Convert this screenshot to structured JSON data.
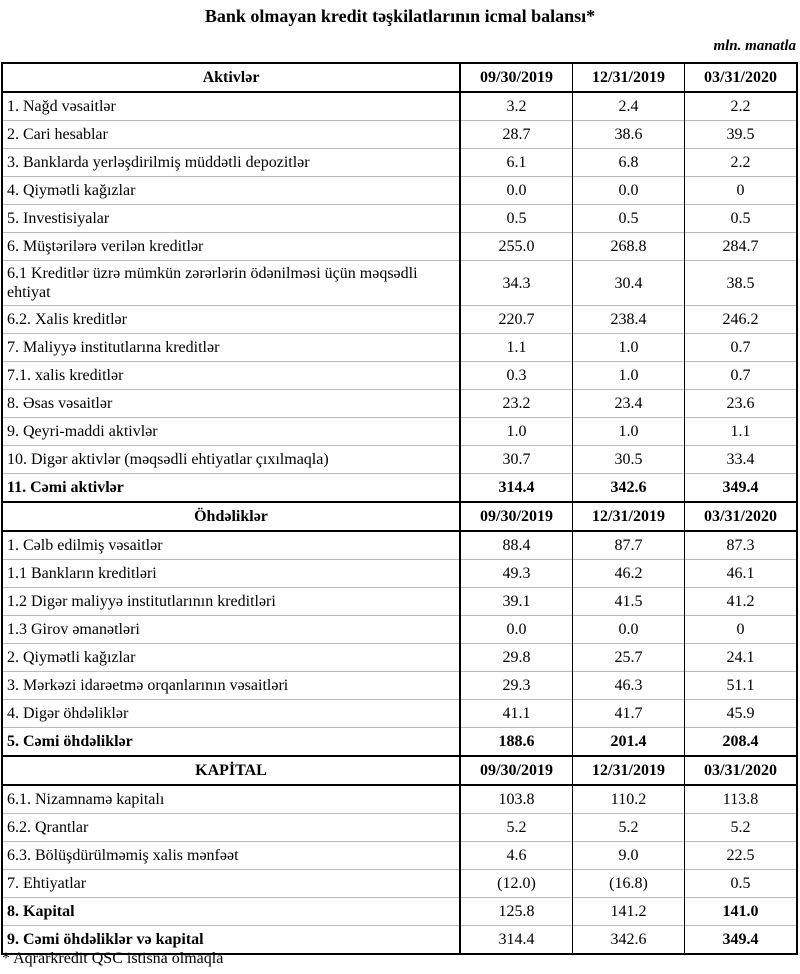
{
  "title": "Bank olmayan kredit təşkilatlarının icmal balansı*",
  "unit": "mln. manatla",
  "footnote": "* Aqrarkredit QSC istisna olmaqla",
  "rows": [
    {
      "type": "header",
      "label": "Aktivlər",
      "values": [
        "09/30/2019",
        "12/31/2019",
        "03/31/2020"
      ]
    },
    {
      "label": "1. Nağd vəsaitlər",
      "values": [
        "3.2",
        "2.4",
        "2.2"
      ]
    },
    {
      "label": "2. Cari hesablar",
      "values": [
        "28.7",
        "38.6",
        "39.5"
      ]
    },
    {
      "label": "3. Banklarda yerləşdirilmiş müddətli depozitlər",
      "values": [
        "6.1",
        "6.8",
        "2.2"
      ]
    },
    {
      "label": "4. Qiymətli kağızlar",
      "values": [
        "0.0",
        "0.0",
        "0"
      ]
    },
    {
      "label": "5. Investisiyalar",
      "values": [
        "0.5",
        "0.5",
        "0.5"
      ]
    },
    {
      "label": "6. Müştərilərə verilən kreditlər",
      "values": [
        "255.0",
        "268.8",
        "284.7"
      ]
    },
    {
      "label": "6.1 Kreditlər üzrə mümkün zərərlərin ödənilməsi üçün məqsədli ehtiyat",
      "values": [
        "34.3",
        "30.4",
        "38.5"
      ],
      "tall": true
    },
    {
      "label": "6.2. Xalis kreditlər",
      "values": [
        "220.7",
        "238.4",
        "246.2"
      ]
    },
    {
      "label": "7. Maliyyə institutlarına kreditlər",
      "values": [
        "1.1",
        "1.0",
        "0.7"
      ]
    },
    {
      "label": "7.1.  xalis kreditlər",
      "values": [
        "0.3",
        "1.0",
        "0.7"
      ]
    },
    {
      "label": "8.  Əsas vəsaitlər",
      "values": [
        "23.2",
        "23.4",
        "23.6"
      ]
    },
    {
      "label": "9. Qeyri-maddi aktivlər",
      "values": [
        "1.0",
        "1.0",
        "1.1"
      ]
    },
    {
      "label": "10. Digər aktivlər (məqsədli ehtiyatlar çıxılmaqla)",
      "values": [
        "30.7",
        "30.5",
        "33.4"
      ]
    },
    {
      "label": "11. Cəmi aktivlər",
      "values": [
        "314.4",
        "342.6",
        "349.4"
      ],
      "bold": [
        true,
        true,
        true,
        true
      ]
    },
    {
      "type": "header",
      "label": "Öhdəliklər",
      "values": [
        "09/30/2019",
        "12/31/2019",
        "03/31/2020"
      ]
    },
    {
      "label": "1. Cəlb edilmiş vəsaitlər",
      "values": [
        "88.4",
        "87.7",
        "87.3"
      ]
    },
    {
      "label": "1.1 Bankların kreditləri",
      "values": [
        "49.3",
        "46.2",
        "46.1"
      ]
    },
    {
      "label": "1.2 Digər maliyyə institutlarının kreditləri",
      "values": [
        "39.1",
        "41.5",
        "41.2"
      ]
    },
    {
      "label": "1.3 Girov əmanətləri",
      "values": [
        "0.0",
        "0.0",
        "0"
      ]
    },
    {
      "label": "2. Qiymətli kağızlar",
      "values": [
        "29.8",
        "25.7",
        "24.1"
      ]
    },
    {
      "label": "3. Mərkəzi idarəetmə orqanlarının vəsaitləri",
      "values": [
        "29.3",
        "46.3",
        "51.1"
      ]
    },
    {
      "label": "4. Digər öhdəliklər",
      "values": [
        "41.1",
        "41.7",
        "45.9"
      ]
    },
    {
      "label": "5. Cəmi öhdəliklər",
      "values": [
        "188.6",
        "201.4",
        "208.4"
      ],
      "bold": [
        true,
        true,
        true,
        true
      ]
    },
    {
      "type": "header",
      "label": "KAPİTAL",
      "values": [
        "09/30/2019",
        "12/31/2019",
        "03/31/2020"
      ]
    },
    {
      "label": "6.1. Nizamnamə kapitalı",
      "values": [
        "103.8",
        "110.2",
        "113.8"
      ]
    },
    {
      "label": "6.2. Qrantlar",
      "values": [
        "5.2",
        "5.2",
        "5.2"
      ]
    },
    {
      "label": "6.3. Bölüşdürülməmiş xalis mənfəət",
      "values": [
        "4.6",
        "9.0",
        "22.5"
      ]
    },
    {
      "label": "7. Ehtiyatlar",
      "values": [
        "(12.0)",
        "(16.8)",
        "0.5"
      ]
    },
    {
      "label": "8. Kapital",
      "values": [
        "125.8",
        "141.2",
        "141.0"
      ],
      "bold": [
        true,
        false,
        false,
        true
      ]
    },
    {
      "label": "9. Cəmi öhdəliklər və kapital",
      "values": [
        "314.4",
        "342.6",
        "349.4"
      ],
      "bold": [
        true,
        false,
        false,
        true
      ]
    }
  ]
}
